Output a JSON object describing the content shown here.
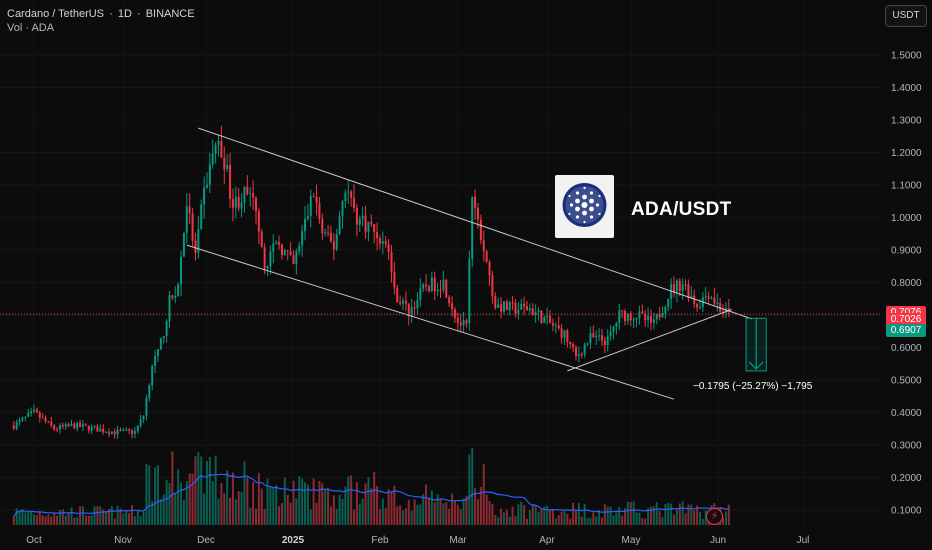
{
  "header": {
    "pair": "Cardano / TetherUS",
    "interval": "1D",
    "exchange": "BINANCE",
    "separator": "·",
    "volume_label": "Vol · ADA"
  },
  "currency_button": "USDT",
  "overlay": {
    "title": "ADA/USDT",
    "logo_icon": "cardano-logo-icon"
  },
  "measurement_label": "−0.1795 (−25.27%) −1,795",
  "price_tags": [
    {
      "value": "0.7076",
      "color": "#f23645"
    },
    {
      "value": "0.7050",
      "color": "#4e525e"
    },
    {
      "value": "0.7026",
      "color": "#f23645"
    },
    {
      "value": "0.6907",
      "color": "#089981"
    }
  ],
  "chart_data": {
    "type": "candlestick",
    "y_ticks": [
      1.5,
      1.4,
      1.3,
      1.2,
      1.1,
      1.0,
      0.9,
      0.8,
      0.7,
      0.6,
      0.5,
      0.4,
      0.3,
      0.2,
      0.1
    ],
    "y_tick_labels": [
      "1.5000",
      "1.4000",
      "1.3000",
      "1.2000",
      "1.1000",
      "1.0000",
      "0.9000",
      "0.8000",
      "0.7000",
      "0.6000",
      "0.5000",
      "0.4000",
      "0.3000",
      "0.2000",
      "0.1000"
    ],
    "x_labels": [
      "Oct",
      "Nov",
      "Dec",
      "2025",
      "Feb",
      "Mar",
      "Apr",
      "May",
      "Jun",
      "Jul"
    ],
    "ylim": [
      0.05,
      1.55
    ],
    "colors": {
      "up": "#089981",
      "down": "#f23645",
      "vol_up": "#0b5e52",
      "vol_down": "#8a2a32",
      "vol_ma": "#2962ff",
      "trend": "#c8c8c8"
    },
    "anchors": [
      [
        "2024-09-24",
        0.36
      ],
      [
        "2024-10-01",
        0.4
      ],
      [
        "2024-10-08",
        0.35
      ],
      [
        "2024-10-15",
        0.36
      ],
      [
        "2024-10-22",
        0.35
      ],
      [
        "2024-10-29",
        0.34
      ],
      [
        "2024-11-05",
        0.34
      ],
      [
        "2024-11-08",
        0.39
      ],
      [
        "2024-11-11",
        0.55
      ],
      [
        "2024-11-13",
        0.58
      ],
      [
        "2024-11-15",
        0.65
      ],
      [
        "2024-11-17",
        0.74
      ],
      [
        "2024-11-20",
        0.79
      ],
      [
        "2024-11-23",
        1.05
      ],
      [
        "2024-11-26",
        0.88
      ],
      [
        "2024-11-29",
        1.08
      ],
      [
        "2024-12-03",
        1.23
      ],
      [
        "2024-12-06",
        1.18
      ],
      [
        "2024-12-09",
        1.04
      ],
      [
        "2024-12-13",
        1.07
      ],
      [
        "2024-12-17",
        1.04
      ],
      [
        "2024-12-20",
        0.86
      ],
      [
        "2024-12-25",
        0.92
      ],
      [
        "2024-12-30",
        0.85
      ],
      [
        "2025-01-06",
        1.08
      ],
      [
        "2025-01-09",
        0.95
      ],
      [
        "2025-01-13",
        0.91
      ],
      [
        "2025-01-17",
        1.1
      ],
      [
        "2025-01-21",
        1.0
      ],
      [
        "2025-01-26",
        0.97
      ],
      [
        "2025-02-01",
        0.9
      ],
      [
        "2025-02-03",
        0.77
      ],
      [
        "2025-02-08",
        0.71
      ],
      [
        "2025-02-14",
        0.79
      ],
      [
        "2025-02-20",
        0.8
      ],
      [
        "2025-02-25",
        0.68
      ],
      [
        "2025-02-28",
        0.66
      ],
      [
        "2025-03-02",
        1.06
      ],
      [
        "2025-03-06",
        0.9
      ],
      [
        "2025-03-10",
        0.73
      ],
      [
        "2025-03-15",
        0.72
      ],
      [
        "2025-03-22",
        0.72
      ],
      [
        "2025-03-28",
        0.68
      ],
      [
        "2025-04-03",
        0.64
      ],
      [
        "2025-04-07",
        0.57
      ],
      [
        "2025-04-12",
        0.63
      ],
      [
        "2025-04-18",
        0.62
      ],
      [
        "2025-04-22",
        0.7
      ],
      [
        "2025-04-28",
        0.7
      ],
      [
        "2025-05-04",
        0.67
      ],
      [
        "2025-05-10",
        0.78
      ],
      [
        "2025-05-14",
        0.8
      ],
      [
        "2025-05-19",
        0.73
      ],
      [
        "2025-05-23",
        0.77
      ],
      [
        "2025-05-27",
        0.72
      ],
      [
        "2025-05-30",
        0.7
      ]
    ],
    "trend_lines": [
      {
        "name": "upper-channel",
        "from": [
          "2024-11-27",
          1.275
        ],
        "to": [
          "2025-06-07",
          0.688
        ]
      },
      {
        "name": "lower-channel",
        "from": [
          "2024-11-23",
          0.915
        ],
        "to": [
          "2025-05-11",
          0.441
        ]
      },
      {
        "name": "rising-support",
        "from": [
          "2025-04-04",
          0.528
        ],
        "to": [
          "2025-05-31",
          0.717
        ]
      }
    ],
    "measure_box": {
      "from": [
        "2025-06-05",
        0.69
      ],
      "to": [
        "2025-06-12",
        0.528
      ]
    }
  }
}
